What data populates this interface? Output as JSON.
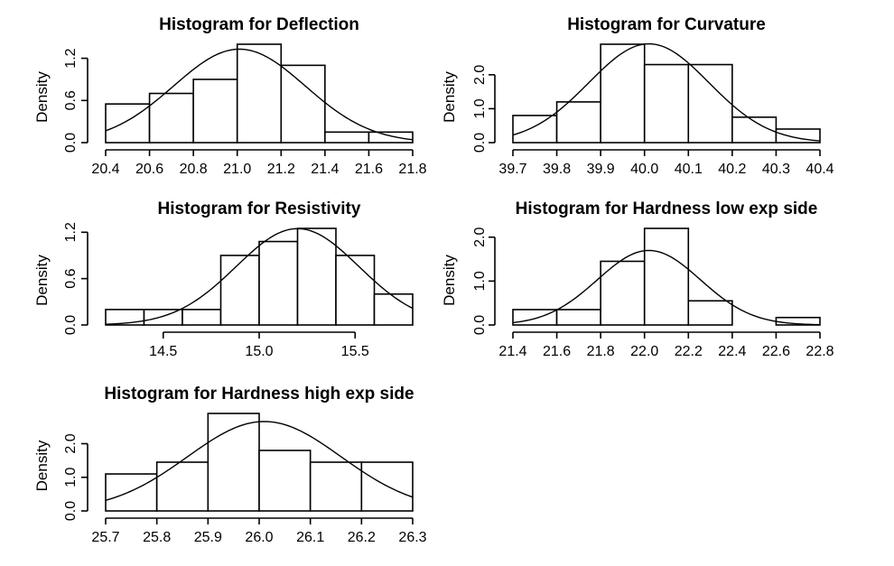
{
  "chart_data": [
    {
      "type": "histogram",
      "title": "Histogram for Deflection",
      "ylabel": "Density",
      "bins": [
        20.4,
        20.6,
        20.8,
        21.0,
        21.2,
        21.4,
        21.6,
        21.8
      ],
      "values": [
        0.55,
        0.7,
        0.9,
        1.4,
        1.1,
        0.15,
        0.15
      ],
      "x_ticks": [
        "20.4",
        "20.6",
        "20.8",
        "21.0",
        "21.2",
        "21.4",
        "21.6",
        "21.8"
      ],
      "y_ticks": [
        "0.0",
        "0.6",
        "1.2"
      ],
      "ylim": [
        0,
        1.4
      ],
      "normal_curve": {
        "mean": 21.01,
        "sd": 0.3
      }
    },
    {
      "type": "histogram",
      "title": "Histogram for Curvature",
      "ylabel": "Density",
      "bins": [
        39.7,
        39.8,
        39.9,
        40.0,
        40.1,
        40.2,
        40.3,
        40.4
      ],
      "values": [
        0.8,
        1.2,
        2.9,
        2.3,
        2.3,
        0.75,
        0.4
      ],
      "x_ticks": [
        "39.7",
        "39.8",
        "39.9",
        "40.0",
        "40.1",
        "40.2",
        "40.3",
        "40.4"
      ],
      "y_ticks": [
        "0.0",
        "1.0",
        "2.0"
      ],
      "ylim": [
        0,
        2.9
      ],
      "normal_curve": {
        "mean": 40.01,
        "sd": 0.137
      }
    },
    {
      "type": "histogram",
      "title": "Histogram for Resistivity",
      "ylabel": "Density",
      "bins": [
        14.2,
        14.4,
        14.6,
        14.8,
        15.0,
        15.2,
        15.4,
        15.6,
        15.8
      ],
      "values": [
        0.2,
        0.2,
        0.2,
        0.9,
        1.08,
        1.25,
        0.9,
        0.4
      ],
      "x_ticks": [
        "14.5",
        "15.0",
        "15.5"
      ],
      "y_ticks": [
        "0.0",
        "0.6",
        "1.2"
      ],
      "ylim": [
        0,
        1.25
      ],
      "normal_curve": {
        "mean": 15.2,
        "sd": 0.32
      }
    },
    {
      "type": "histogram",
      "title": "Histogram for Hardness low exp side",
      "ylabel": "Density",
      "bins": [
        21.4,
        21.6,
        21.8,
        22.0,
        22.2,
        22.4,
        22.6,
        22.8
      ],
      "values": [
        0.35,
        0.35,
        1.45,
        2.2,
        0.55,
        0.0,
        0.17
      ],
      "x_ticks": [
        "21.4",
        "21.6",
        "21.8",
        "22.0",
        "22.2",
        "22.4",
        "22.6",
        "22.8"
      ],
      "y_ticks": [
        "0.0",
        "1.0",
        "2.0"
      ],
      "ylim": [
        0,
        2.2
      ],
      "normal_curve": {
        "mean": 22.02,
        "sd": 0.235
      }
    },
    {
      "type": "histogram",
      "title": "Histogram for Hardness high exp side",
      "ylabel": "Density",
      "bins": [
        25.7,
        25.8,
        25.9,
        26.0,
        26.1,
        26.2,
        26.3
      ],
      "values": [
        1.1,
        1.45,
        2.9,
        1.8,
        1.45,
        1.45
      ],
      "x_ticks": [
        "25.7",
        "25.8",
        "25.9",
        "26.0",
        "26.1",
        "26.2",
        "26.3"
      ],
      "y_ticks": [
        "0.0",
        "1.0",
        "2.0"
      ],
      "ylim": [
        0,
        2.9
      ],
      "normal_curve": {
        "mean": 26.01,
        "sd": 0.15
      }
    }
  ]
}
